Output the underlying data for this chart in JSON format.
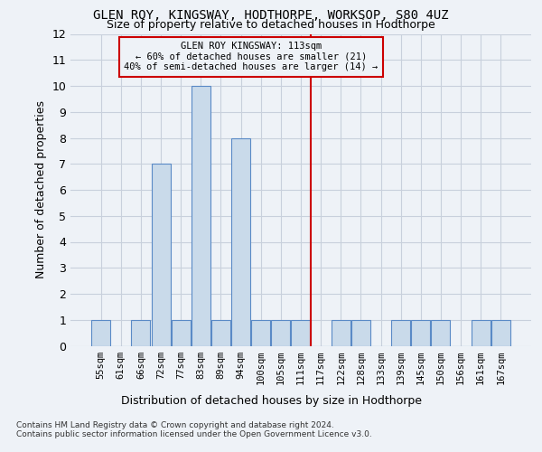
{
  "title": "GLEN ROY, KINGSWAY, HODTHORPE, WORKSOP, S80 4UZ",
  "subtitle": "Size of property relative to detached houses in Hodthorpe",
  "xlabel_bottom": "Distribution of detached houses by size in Hodthorpe",
  "ylabel": "Number of detached properties",
  "categories": [
    "55sqm",
    "61sqm",
    "66sqm",
    "72sqm",
    "77sqm",
    "83sqm",
    "89sqm",
    "94sqm",
    "100sqm",
    "105sqm",
    "111sqm",
    "117sqm",
    "122sqm",
    "128sqm",
    "133sqm",
    "139sqm",
    "145sqm",
    "150sqm",
    "156sqm",
    "161sqm",
    "167sqm"
  ],
  "values": [
    1,
    0,
    1,
    7,
    1,
    10,
    1,
    8,
    1,
    1,
    1,
    0,
    1,
    1,
    0,
    1,
    1,
    1,
    0,
    1,
    1
  ],
  "bar_color": "#c9daea",
  "bar_edge_color": "#5a8ac6",
  "ylim": [
    0,
    12
  ],
  "yticks": [
    0,
    1,
    2,
    3,
    4,
    5,
    6,
    7,
    8,
    9,
    10,
    11,
    12
  ],
  "ref_line_x": 10.5,
  "ref_line_color": "#cc0000",
  "annotation_text": "GLEN ROY KINGSWAY: 113sqm\n← 60% of detached houses are smaller (21)\n40% of semi-detached houses are larger (14) →",
  "annotation_box_color": "#cc0000",
  "footnote1": "Contains HM Land Registry data © Crown copyright and database right 2024.",
  "footnote2": "Contains public sector information licensed under the Open Government Licence v3.0.",
  "background_color": "#eef2f7",
  "grid_color": "#c8d0dc"
}
